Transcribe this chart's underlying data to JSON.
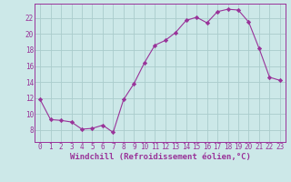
{
  "x": [
    0,
    1,
    2,
    3,
    4,
    5,
    6,
    7,
    8,
    9,
    10,
    11,
    12,
    13,
    14,
    15,
    16,
    17,
    18,
    19,
    20,
    21,
    22,
    23
  ],
  "y": [
    11.8,
    9.3,
    9.2,
    9.0,
    8.1,
    8.2,
    8.6,
    7.7,
    11.8,
    13.8,
    16.4,
    18.6,
    19.2,
    20.2,
    21.7,
    22.1,
    21.4,
    22.8,
    23.1,
    23.0,
    21.5,
    18.2,
    14.6,
    14.2
  ],
  "line_color": "#993399",
  "marker": "D",
  "marker_size": 2.2,
  "bg_color": "#cce8e8",
  "grid_color": "#aacccc",
  "xlabel": "Windchill (Refroidissement éolien,°C)",
  "xlabel_fontsize": 6.5,
  "tick_fontsize": 5.5,
  "xlim": [
    -0.5,
    23.5
  ],
  "ylim": [
    6.5,
    23.8
  ],
  "yticks": [
    8,
    10,
    12,
    14,
    16,
    18,
    20,
    22
  ],
  "xticks": [
    0,
    1,
    2,
    3,
    4,
    5,
    6,
    7,
    8,
    9,
    10,
    11,
    12,
    13,
    14,
    15,
    16,
    17,
    18,
    19,
    20,
    21,
    22,
    23
  ]
}
